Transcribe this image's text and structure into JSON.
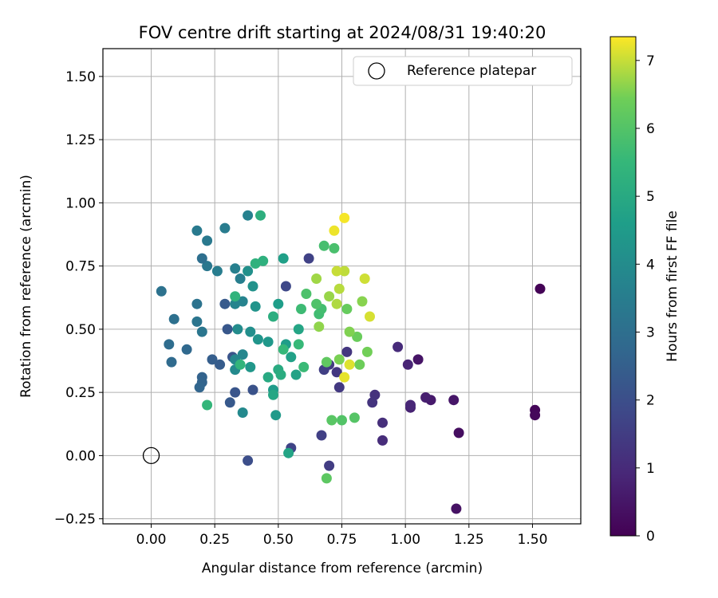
{
  "chart_data": {
    "type": "scatter",
    "title": "FOV centre drift starting at 2024/08/31 19:40:20",
    "xlabel": "Angular distance from reference (arcmin)",
    "ylabel": "Rotation from reference (arcmin)",
    "xlim": [
      -0.19,
      1.69
    ],
    "ylim": [
      -0.27,
      1.61
    ],
    "xticks": [
      "0.00",
      "0.25",
      "0.50",
      "0.75",
      "1.00",
      "1.25",
      "1.50"
    ],
    "yticks": [
      "−0.25",
      "0.00",
      "0.25",
      "0.50",
      "0.75",
      "1.00",
      "1.25",
      "1.50"
    ],
    "grid": true,
    "legend": {
      "position": "top-right",
      "entries": [
        "Reference platepar"
      ]
    },
    "reference_point": {
      "x": 0.0,
      "y": 0.0,
      "label": "Reference platepar"
    },
    "colorbar": {
      "label": "Hours from first FF file",
      "min": 0,
      "max": 7.35,
      "ticks": [
        "0",
        "1",
        "2",
        "3",
        "4",
        "5",
        "6",
        "7"
      ],
      "colormap": "viridis"
    },
    "series": [
      {
        "color_by": "hours",
        "points": [
          [
            1.53,
            0.66,
            0.05
          ],
          [
            1.51,
            0.18,
            0.1
          ],
          [
            1.51,
            0.16,
            0.15
          ],
          [
            1.21,
            0.09,
            0.3
          ],
          [
            1.2,
            -0.21,
            0.4
          ],
          [
            1.19,
            0.22,
            0.5
          ],
          [
            1.1,
            0.22,
            0.6
          ],
          [
            1.08,
            0.23,
            0.7
          ],
          [
            1.05,
            0.38,
            0.45
          ],
          [
            1.02,
            0.19,
            0.8
          ],
          [
            1.02,
            0.2,
            0.9
          ],
          [
            1.01,
            0.36,
            0.85
          ],
          [
            0.97,
            0.43,
            1.0
          ],
          [
            0.91,
            0.13,
            1.1
          ],
          [
            0.91,
            0.06,
            1.05
          ],
          [
            0.88,
            0.24,
            1.2
          ],
          [
            0.87,
            0.21,
            1.25
          ],
          [
            0.77,
            0.41,
            1.3
          ],
          [
            0.74,
            0.27,
            1.4
          ],
          [
            0.73,
            0.33,
            1.35
          ],
          [
            0.7,
            0.36,
            1.45
          ],
          [
            0.7,
            -0.04,
            1.5
          ],
          [
            0.68,
            0.34,
            1.55
          ],
          [
            0.67,
            0.08,
            1.6
          ],
          [
            0.62,
            0.78,
            1.65
          ],
          [
            0.55,
            0.03,
            1.7
          ],
          [
            0.53,
            0.67,
            1.8
          ],
          [
            0.38,
            -0.02,
            2.0
          ],
          [
            0.4,
            0.26,
            2.1
          ],
          [
            0.33,
            0.25,
            2.2
          ],
          [
            0.32,
            0.39,
            2.15
          ],
          [
            0.3,
            0.5,
            2.25
          ],
          [
            0.31,
            0.21,
            2.3
          ],
          [
            0.29,
            0.6,
            2.35
          ],
          [
            0.27,
            0.36,
            2.4
          ],
          [
            0.24,
            0.38,
            2.45
          ],
          [
            0.2,
            0.31,
            2.6
          ],
          [
            0.2,
            0.29,
            2.65
          ],
          [
            0.19,
            0.27,
            2.7
          ],
          [
            0.14,
            0.42,
            2.8
          ],
          [
            0.08,
            0.37,
            2.85
          ],
          [
            0.07,
            0.44,
            2.95
          ],
          [
            0.09,
            0.54,
            3.05
          ],
          [
            0.04,
            0.65,
            3.1
          ],
          [
            0.18,
            0.6,
            3.15
          ],
          [
            0.18,
            0.53,
            3.2
          ],
          [
            0.2,
            0.49,
            3.25
          ],
          [
            0.22,
            0.75,
            3.3
          ],
          [
            0.2,
            0.78,
            3.0
          ],
          [
            0.22,
            0.85,
            3.35
          ],
          [
            0.18,
            0.89,
            3.4
          ],
          [
            0.29,
            0.9,
            3.45
          ],
          [
            0.26,
            0.73,
            3.5
          ],
          [
            0.35,
            0.7,
            3.55
          ],
          [
            0.33,
            0.74,
            3.6
          ],
          [
            0.38,
            0.95,
            3.65
          ],
          [
            0.36,
            0.61,
            3.7
          ],
          [
            0.33,
            0.6,
            3.75
          ],
          [
            0.36,
            0.4,
            3.8
          ],
          [
            0.33,
            0.38,
            3.85
          ],
          [
            0.36,
            0.17,
            3.9
          ],
          [
            0.33,
            0.34,
            3.95
          ],
          [
            0.34,
            0.5,
            4.0
          ],
          [
            0.39,
            0.49,
            4.1
          ],
          [
            0.38,
            0.73,
            4.15
          ],
          [
            0.4,
            0.67,
            4.2
          ],
          [
            0.41,
            0.59,
            4.25
          ],
          [
            0.42,
            0.46,
            4.3
          ],
          [
            0.39,
            0.35,
            4.35
          ],
          [
            0.46,
            0.45,
            4.4
          ],
          [
            0.49,
            0.16,
            4.45
          ],
          [
            0.48,
            0.26,
            4.5
          ],
          [
            0.53,
            0.44,
            4.55
          ],
          [
            0.5,
            0.6,
            4.6
          ],
          [
            0.52,
            0.78,
            4.65
          ],
          [
            0.55,
            0.39,
            4.7
          ],
          [
            0.57,
            0.32,
            4.75
          ],
          [
            0.54,
            0.01,
            4.8
          ],
          [
            0.58,
            0.5,
            4.85
          ],
          [
            0.48,
            0.24,
            4.9
          ],
          [
            0.46,
            0.31,
            5.0
          ],
          [
            0.5,
            0.34,
            5.05
          ],
          [
            0.51,
            0.32,
            5.1
          ],
          [
            0.48,
            0.55,
            5.15
          ],
          [
            0.43,
            0.95,
            5.2
          ],
          [
            0.44,
            0.77,
            5.25
          ],
          [
            0.41,
            0.76,
            5.3
          ],
          [
            0.33,
            0.63,
            5.35
          ],
          [
            0.35,
            0.36,
            5.4
          ],
          [
            0.22,
            0.2,
            5.45
          ],
          [
            0.52,
            0.42,
            5.5
          ],
          [
            0.58,
            0.44,
            5.55
          ],
          [
            0.6,
            0.35,
            5.6
          ],
          [
            0.59,
            0.58,
            5.65
          ],
          [
            0.66,
            0.56,
            5.7
          ],
          [
            0.67,
            0.58,
            5.75
          ],
          [
            0.68,
            0.83,
            5.8
          ],
          [
            0.72,
            0.82,
            5.85
          ],
          [
            0.61,
            0.64,
            5.9
          ],
          [
            0.65,
            0.6,
            5.95
          ],
          [
            0.75,
            0.14,
            6.0
          ],
          [
            0.8,
            0.15,
            6.05
          ],
          [
            0.71,
            0.14,
            6.1
          ],
          [
            0.69,
            -0.09,
            6.15
          ],
          [
            0.69,
            0.37,
            6.2
          ],
          [
            0.77,
            0.58,
            6.3
          ],
          [
            0.81,
            0.47,
            6.35
          ],
          [
            0.85,
            0.41,
            6.45
          ],
          [
            0.82,
            0.36,
            6.4
          ],
          [
            0.74,
            0.38,
            6.5
          ],
          [
            0.78,
            0.49,
            6.55
          ],
          [
            0.83,
            0.61,
            6.6
          ],
          [
            0.66,
            0.51,
            6.65
          ],
          [
            0.7,
            0.63,
            6.7
          ],
          [
            0.65,
            0.7,
            6.75
          ],
          [
            0.73,
            0.6,
            6.85
          ],
          [
            0.74,
            0.66,
            6.9
          ],
          [
            0.76,
            0.73,
            6.95
          ],
          [
            0.73,
            0.73,
            7.0
          ],
          [
            0.84,
            0.7,
            7.05
          ],
          [
            0.86,
            0.55,
            7.1
          ],
          [
            0.78,
            0.36,
            7.15
          ],
          [
            0.76,
            0.31,
            7.2
          ],
          [
            0.72,
            0.89,
            7.25
          ],
          [
            0.76,
            0.94,
            7.3
          ]
        ]
      }
    ]
  }
}
